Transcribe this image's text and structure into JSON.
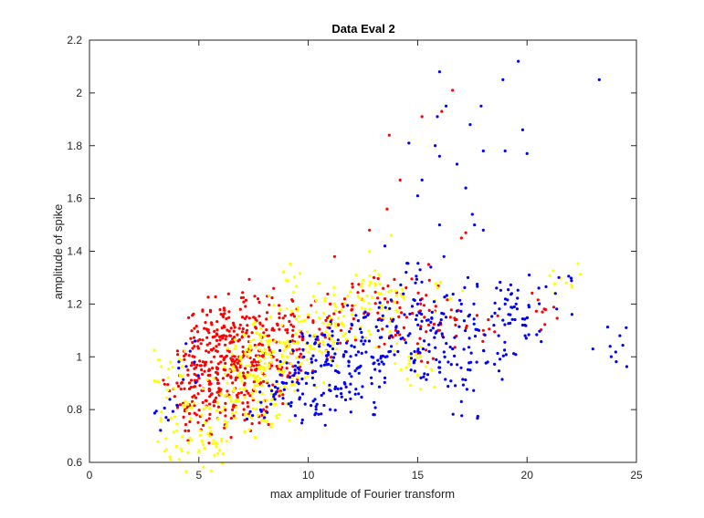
{
  "chart_data": {
    "type": "scatter",
    "title": "Data Eval 2",
    "xlabel": "max amplitude of Fourier transform",
    "ylabel": "amplitude of spike",
    "xlim": [
      0,
      25
    ],
    "ylim": [
      0.6,
      2.2
    ],
    "xticks": [
      0,
      5,
      10,
      15,
      20,
      25
    ],
    "yticks": [
      0.6,
      0.8,
      1,
      1.2,
      1.4,
      1.6,
      1.8,
      2,
      2.2
    ],
    "xtick_labels": [
      "0",
      "5",
      "10",
      "15",
      "20",
      "25"
    ],
    "ytick_labels": [
      "0.6",
      "0.8",
      "1",
      "1.2",
      "1.4",
      "1.6",
      "1.8",
      "2",
      "2.2"
    ],
    "grid": false,
    "legend": "none",
    "series": [
      {
        "color": "#ff0000",
        "points": [
          [
            3.9,
            0.85
          ],
          [
            4.2,
            0.9
          ],
          [
            4.5,
            0.95
          ],
          [
            4.7,
            0.83
          ],
          [
            4.8,
            1.0
          ],
          [
            5.0,
            0.92
          ],
          [
            5.1,
            1.05
          ],
          [
            5.2,
            0.88
          ],
          [
            5.3,
            0.97
          ],
          [
            5.4,
            1.1
          ],
          [
            5.5,
            0.93
          ],
          [
            5.6,
            0.86
          ],
          [
            5.7,
            1.0
          ],
          [
            5.8,
            1.04
          ],
          [
            5.9,
            0.9
          ],
          [
            6.0,
            0.98
          ],
          [
            6.1,
            1.08
          ],
          [
            6.2,
            0.95
          ],
          [
            6.3,
            0.87
          ],
          [
            6.4,
            1.02
          ],
          [
            6.5,
            0.99
          ],
          [
            6.6,
            1.12
          ],
          [
            6.7,
            0.92
          ],
          [
            6.8,
            1.06
          ],
          [
            6.9,
            0.97
          ],
          [
            7.0,
            1.0
          ],
          [
            7.1,
            0.9
          ],
          [
            7.2,
            1.1
          ],
          [
            7.3,
            1.03
          ],
          [
            7.4,
            0.95
          ],
          [
            7.5,
            1.15
          ],
          [
            7.6,
            0.98
          ],
          [
            7.8,
            1.05
          ],
          [
            8.0,
            0.93
          ],
          [
            8.2,
            1.08
          ],
          [
            8.4,
            1.0
          ],
          [
            8.6,
            1.12
          ],
          [
            8.8,
            0.96
          ],
          [
            9.0,
            1.04
          ],
          [
            9.3,
            1.1
          ],
          [
            9.6,
            1.0
          ],
          [
            10.0,
            1.15
          ],
          [
            10.5,
            1.05
          ],
          [
            11.0,
            1.2
          ],
          [
            11.5,
            1.1
          ],
          [
            12.0,
            1.18
          ],
          [
            12.5,
            1.25
          ],
          [
            13.0,
            1.3
          ],
          [
            13.5,
            1.22
          ],
          [
            14.0,
            1.1
          ],
          [
            14.5,
            1.15
          ],
          [
            15.0,
            1.05
          ],
          [
            15.2,
            1.22
          ],
          [
            15.5,
            1.35
          ],
          [
            16.0,
            1.1
          ],
          [
            16.5,
            1.15
          ],
          [
            17.0,
            1.45
          ],
          [
            18.0,
            1.1
          ],
          [
            20.7,
            1.17
          ],
          [
            6.6,
            0.81
          ],
          [
            7.1,
            0.76
          ],
          [
            5.2,
            0.74
          ],
          [
            5.9,
            0.81
          ],
          [
            4.9,
            0.78
          ],
          [
            8.1,
            0.81
          ],
          [
            13.7,
            1.84
          ],
          [
            15.2,
            1.91
          ],
          [
            16.6,
            2.01
          ],
          [
            16.1,
            1.93
          ],
          [
            13.6,
            1.56
          ],
          [
            14.2,
            1.67
          ],
          [
            12.8,
            1.48
          ],
          [
            11.2,
            1.38
          ],
          [
            17.2,
            1.47
          ],
          [
            6.9,
            1.18
          ],
          [
            7.7,
            1.22
          ],
          [
            5.3,
            1.13
          ],
          [
            6.1,
            1.16
          ]
        ]
      },
      {
        "color": "#ffff00",
        "points": [
          [
            3.5,
            0.69
          ],
          [
            3.6,
            0.92
          ],
          [
            3.7,
            0.98
          ],
          [
            4.0,
            0.72
          ],
          [
            4.5,
            0.82
          ],
          [
            5.0,
            0.64
          ],
          [
            5.5,
            0.7
          ],
          [
            5.8,
            0.66
          ],
          [
            6.0,
            0.86
          ],
          [
            6.3,
            0.9
          ],
          [
            6.6,
            0.95
          ],
          [
            6.9,
            1.0
          ],
          [
            7.1,
            0.88
          ],
          [
            7.3,
            1.04
          ],
          [
            7.5,
            0.93
          ],
          [
            7.7,
            1.0
          ],
          [
            7.9,
            0.86
          ],
          [
            8.0,
            1.08
          ],
          [
            8.2,
            0.97
          ],
          [
            8.4,
            1.02
          ],
          [
            8.6,
            0.9
          ],
          [
            8.8,
            1.12
          ],
          [
            9.0,
            0.98
          ],
          [
            9.2,
            1.06
          ],
          [
            9.4,
            0.93
          ],
          [
            9.6,
            1.1
          ],
          [
            9.8,
            1.0
          ],
          [
            10.0,
            1.16
          ],
          [
            10.3,
            1.05
          ],
          [
            10.6,
            0.96
          ],
          [
            10.9,
            1.12
          ],
          [
            11.2,
            1.2
          ],
          [
            11.6,
            1.08
          ],
          [
            12.0,
            1.16
          ],
          [
            12.4,
            1.22
          ],
          [
            12.8,
            1.27
          ],
          [
            13.2,
            1.1
          ],
          [
            13.6,
            1.18
          ],
          [
            14.0,
            1.25
          ],
          [
            14.6,
            1.0
          ],
          [
            15.0,
            0.93
          ],
          [
            16.5,
            1.22
          ],
          [
            21.8,
            1.28
          ],
          [
            12.8,
            1.4
          ],
          [
            13.8,
            1.46
          ],
          [
            9.0,
            1.29
          ],
          [
            7.9,
            0.76
          ],
          [
            8.5,
            0.82
          ],
          [
            6.7,
            0.79
          ],
          [
            5.3,
            0.75
          ]
        ]
      },
      {
        "color": "#0000ff",
        "points": [
          [
            3.6,
            0.76
          ],
          [
            4.8,
            0.98
          ],
          [
            8.0,
            0.77
          ],
          [
            8.5,
            0.86
          ],
          [
            9.0,
            0.9
          ],
          [
            9.4,
            0.95
          ],
          [
            9.8,
            1.0
          ],
          [
            10.2,
            0.92
          ],
          [
            10.5,
            1.04
          ],
          [
            10.8,
            0.98
          ],
          [
            11.1,
            1.08
          ],
          [
            11.4,
            0.94
          ],
          [
            11.7,
            1.02
          ],
          [
            12.0,
            1.12
          ],
          [
            12.3,
            0.96
          ],
          [
            12.6,
            1.06
          ],
          [
            12.9,
            1.0
          ],
          [
            13.2,
            1.14
          ],
          [
            13.5,
            0.92
          ],
          [
            13.8,
            1.08
          ],
          [
            14.1,
            1.02
          ],
          [
            14.4,
            1.16
          ],
          [
            14.7,
            0.95
          ],
          [
            15.0,
            1.2
          ],
          [
            15.3,
            1.06
          ],
          [
            15.6,
            1.1
          ],
          [
            16.0,
            0.98
          ],
          [
            16.3,
            1.15
          ],
          [
            16.6,
            1.03
          ],
          [
            17.0,
            1.2
          ],
          [
            17.4,
            0.95
          ],
          [
            17.8,
            1.1
          ],
          [
            18.2,
            0.98
          ],
          [
            18.7,
            1.08
          ],
          [
            19.3,
            1.24
          ],
          [
            19.9,
            1.12
          ],
          [
            20.1,
            1.31
          ],
          [
            21.3,
            1.24
          ],
          [
            23.8,
            1.04
          ],
          [
            17.0,
            0.83
          ],
          [
            16.0,
            2.08
          ],
          [
            19.6,
            2.12
          ],
          [
            23.3,
            2.05
          ],
          [
            18.9,
            2.05
          ],
          [
            17.9,
            1.95
          ],
          [
            16.3,
            1.95
          ],
          [
            15.9,
            1.91
          ],
          [
            17.4,
            1.88
          ],
          [
            19.8,
            1.86
          ],
          [
            14.6,
            1.81
          ],
          [
            15.8,
            1.8
          ],
          [
            16.0,
            1.76
          ],
          [
            18.0,
            1.78
          ],
          [
            19.0,
            1.78
          ],
          [
            20.0,
            1.77
          ],
          [
            16.8,
            1.73
          ],
          [
            17.2,
            1.64
          ],
          [
            15.2,
            1.67
          ],
          [
            15.0,
            1.61
          ],
          [
            17.5,
            1.54
          ],
          [
            16.0,
            1.5
          ],
          [
            17.6,
            1.5
          ],
          [
            18.0,
            1.48
          ],
          [
            16.2,
            1.38
          ],
          [
            15.6,
            1.34
          ],
          [
            17.3,
            1.3
          ],
          [
            13.5,
            1.42
          ],
          [
            14.9,
            1.28
          ],
          [
            19.0,
            1.2
          ],
          [
            19.8,
            1.12
          ],
          [
            11.5,
            0.88
          ],
          [
            12.3,
            0.86
          ],
          [
            10.4,
            0.82
          ],
          [
            9.6,
            0.84
          ],
          [
            11.0,
            0.8
          ]
        ]
      }
    ]
  }
}
